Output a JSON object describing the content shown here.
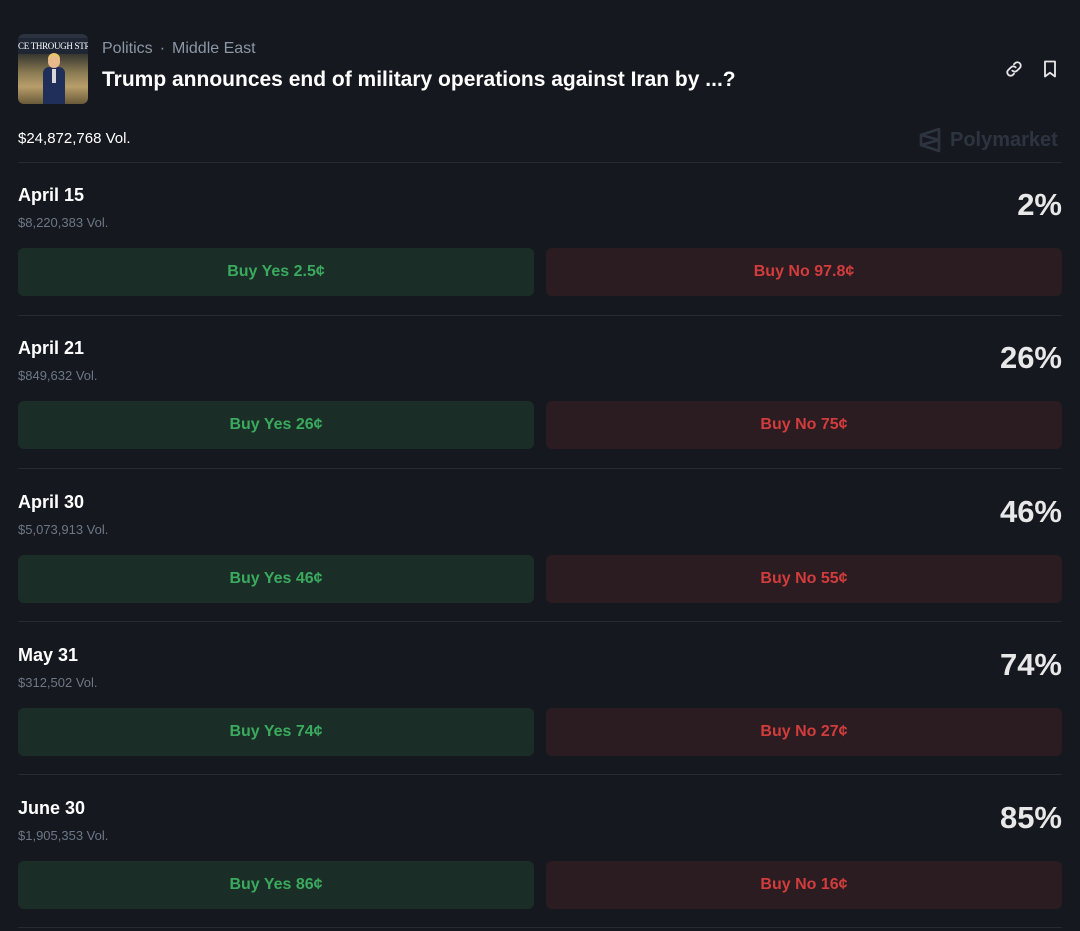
{
  "header": {
    "thumbnail_text": "CE THROUGH STRENG",
    "category": "Politics",
    "subcategory": "Middle East",
    "separator": "·",
    "title": "Trump announces end of military operations against Iran by ...?",
    "icons": [
      "link-icon",
      "bookmark-icon"
    ]
  },
  "summary": {
    "total_volume": "$24,872,768 Vol.",
    "brand": "Polymarket"
  },
  "colors": {
    "background": "#15191f",
    "yes_bg": "#1a2d26",
    "yes_text": "#3aaa5e",
    "no_bg": "#2a1c21",
    "no_text": "#d23c3c"
  },
  "markets": [
    {
      "label": "April 15",
      "volume": "$8,220,383 Vol.",
      "percent": "2%",
      "yes": "Buy Yes 2.5¢",
      "no": "Buy No 97.8¢"
    },
    {
      "label": "April 21",
      "volume": "$849,632 Vol.",
      "percent": "26%",
      "yes": "Buy Yes 26¢",
      "no": "Buy No 75¢"
    },
    {
      "label": "April 30",
      "volume": "$5,073,913 Vol.",
      "percent": "46%",
      "yes": "Buy Yes 46¢",
      "no": "Buy No 55¢"
    },
    {
      "label": "May 31",
      "volume": "$312,502 Vol.",
      "percent": "74%",
      "yes": "Buy Yes 74¢",
      "no": "Buy No 27¢"
    },
    {
      "label": "June 30",
      "volume": "$1,905,353 Vol.",
      "percent": "85%",
      "yes": "Buy Yes 86¢",
      "no": "Buy No 16¢"
    }
  ]
}
